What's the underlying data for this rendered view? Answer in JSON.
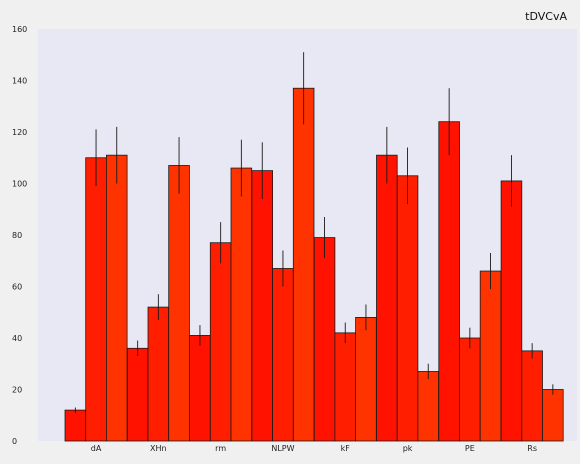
{
  "chart_data": {
    "type": "bar",
    "title": "tDVCvA",
    "xlabel": "",
    "ylabel": "",
    "ylim": [
      0,
      160
    ],
    "yticks": [
      0,
      20,
      40,
      60,
      80,
      100,
      120,
      140,
      160
    ],
    "grid": false,
    "categories": [
      "dA",
      "XHn",
      "rm",
      "NLPW",
      "kF",
      "pk",
      "PE",
      "Rs"
    ],
    "series": [
      {
        "color": "#ff1200",
        "values": [
          12,
          36,
          41,
          105,
          79,
          111,
          124,
          101
        ],
        "errors": [
          1,
          3,
          4,
          11,
          8,
          11,
          13,
          10
        ]
      },
      {
        "color": "#ff1f00",
        "values": [
          110,
          52,
          77,
          67,
          42,
          103,
          40,
          35
        ],
        "errors": [
          11,
          5,
          8,
          7,
          4,
          11,
          4,
          3
        ]
      },
      {
        "color": "#ff3300",
        "values": [
          111,
          107,
          106,
          137,
          48,
          27,
          66,
          20
        ],
        "errors": [
          11,
          11,
          11,
          14,
          5,
          3,
          7,
          2
        ]
      }
    ],
    "colors": {
      "background": "#f0f0f0",
      "plot_area": "#e8e8f4",
      "bar_edge": "#1a1a1a",
      "error_bar": "#1a1a1a"
    }
  }
}
